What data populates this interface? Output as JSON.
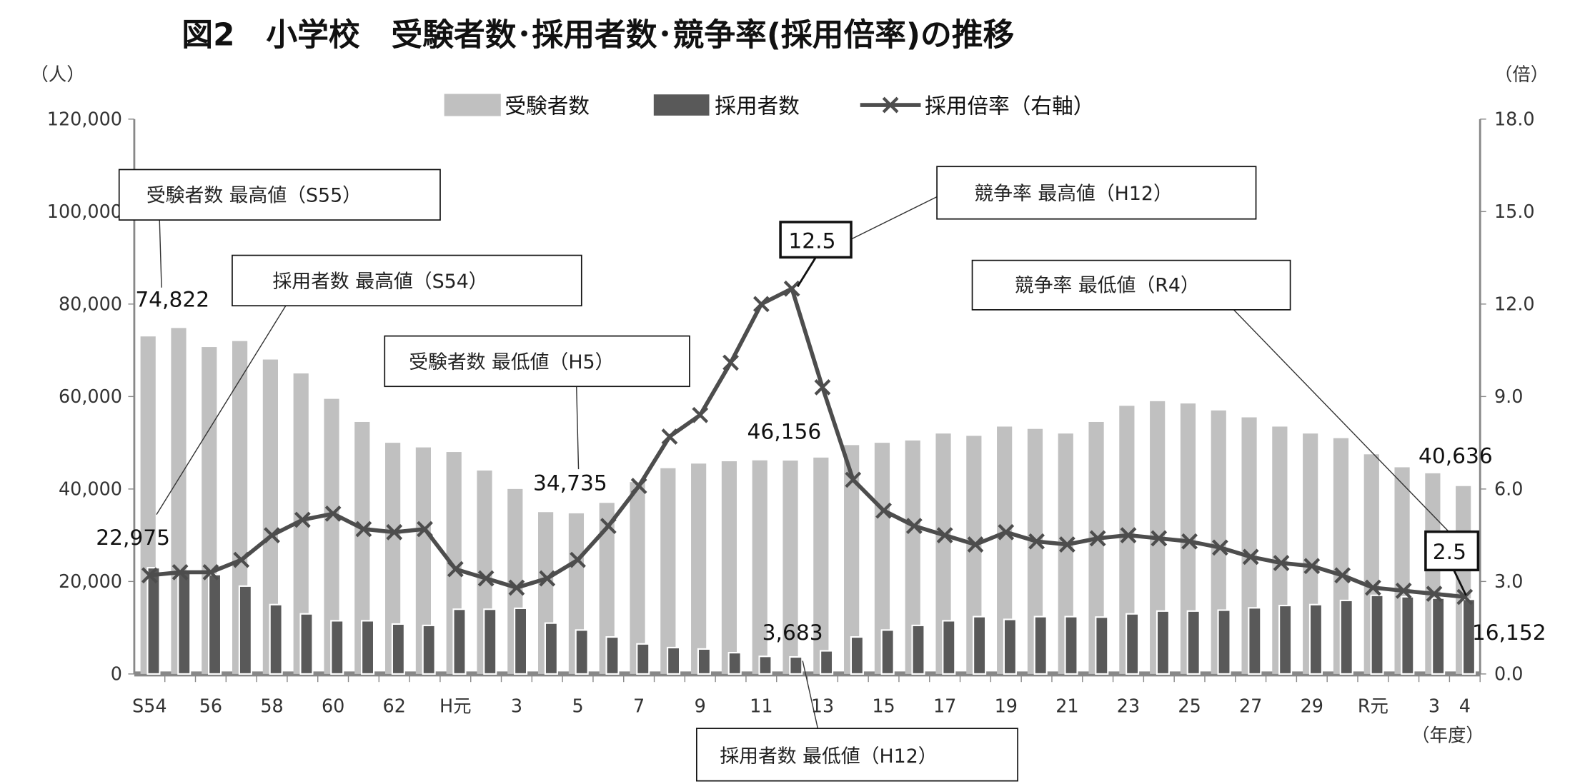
{
  "chart_data": {
    "type": "bar",
    "title": "図2　小学校　受験者数･採用者数･競争率(採用倍率)の推移",
    "ylabel_left": "（人）",
    "ylabel_right": "（倍）",
    "xlabel": "（年度）",
    "ylim_left": [
      0,
      120000
    ],
    "ylim_right": [
      0,
      18
    ],
    "yticks_left": [
      "0",
      "20,000",
      "40,000",
      "60,000",
      "80,000",
      "100,000",
      "120,000"
    ],
    "yticks_right": [
      "0.0",
      "3.0",
      "6.0",
      "9.0",
      "12.0",
      "15.0",
      "18.0"
    ],
    "legend_position": "top-center",
    "categories": [
      "S54",
      "S55",
      "S56",
      "S57",
      "S58",
      "S59",
      "S60",
      "S61",
      "S62",
      "S63",
      "H元",
      "H2",
      "H3",
      "H4",
      "H5",
      "H6",
      "H7",
      "H8",
      "H9",
      "H10",
      "H11",
      "H12",
      "H13",
      "H14",
      "H15",
      "H16",
      "H17",
      "H18",
      "H19",
      "H20",
      "H21",
      "H22",
      "H23",
      "H24",
      "H25",
      "H26",
      "H27",
      "H28",
      "H29",
      "H30",
      "R元",
      "R2",
      "R3",
      "R4"
    ],
    "xtick_labels": [
      "S54",
      "",
      "56",
      "",
      "58",
      "",
      "60",
      "",
      "62",
      "",
      "H元",
      "",
      "3",
      "",
      "5",
      "",
      "7",
      "",
      "9",
      "",
      "11",
      "",
      "13",
      "",
      "15",
      "",
      "17",
      "",
      "19",
      "",
      "21",
      "",
      "23",
      "",
      "25",
      "",
      "27",
      "",
      "29",
      "",
      "R元",
      "",
      "3",
      "4"
    ],
    "series": [
      {
        "name": "受験者数",
        "type": "bar",
        "color": "#c0c0c0",
        "values": [
          73000,
          74822,
          70700,
          72000,
          68000,
          65000,
          59500,
          54500,
          50000,
          49000,
          48000,
          44000,
          40000,
          35000,
          34735,
          37000,
          41500,
          44500,
          45500,
          46000,
          46200,
          46156,
          46800,
          49500,
          50000,
          50500,
          52000,
          51500,
          53500,
          53000,
          52000,
          54500,
          58000,
          59000,
          58500,
          57000,
          55500,
          53500,
          52000,
          51000,
          47500,
          44700,
          43400,
          40636
        ]
      },
      {
        "name": "採用者数",
        "type": "bar",
        "color": "#595959",
        "values": [
          22975,
          22000,
          21500,
          19000,
          15000,
          13000,
          11500,
          11500,
          10800,
          10500,
          14000,
          14000,
          14200,
          11000,
          9500,
          8000,
          6500,
          5700,
          5400,
          4600,
          3800,
          3683,
          5000,
          8000,
          9500,
          10500,
          11500,
          12400,
          11800,
          12400,
          12400,
          12300,
          13000,
          13600,
          13600,
          13800,
          14300,
          14800,
          15000,
          15900,
          17000,
          16700,
          16400,
          16152
        ]
      },
      {
        "name": "採用倍率（右軸）",
        "type": "line",
        "color": "#4d4d4d",
        "values": [
          3.2,
          3.3,
          3.3,
          3.7,
          4.5,
          5.0,
          5.2,
          4.7,
          4.6,
          4.7,
          3.4,
          3.1,
          2.8,
          3.1,
          3.7,
          4.8,
          6.1,
          7.7,
          8.4,
          10.1,
          12.0,
          12.5,
          9.3,
          6.3,
          5.3,
          4.8,
          4.5,
          4.2,
          4.6,
          4.3,
          4.2,
          4.4,
          4.5,
          4.4,
          4.3,
          4.1,
          3.8,
          3.6,
          3.5,
          3.2,
          2.8,
          2.7,
          2.6,
          2.5
        ]
      }
    ],
    "data_labels": [
      "74,822",
      "22,975",
      "34,735",
      "46,156",
      "3,683",
      "40,636",
      "16,152"
    ],
    "ratio_labels": [
      "12.5",
      "2.5"
    ],
    "annotations": [
      "受験者数 最高値（S55）",
      "採用者数 最高値（S54）",
      "受験者数 最低値（H5）",
      "競争率 最高値（H12）",
      "競争率 最低値（R4）",
      "採用者数 最低値（H12）"
    ]
  }
}
